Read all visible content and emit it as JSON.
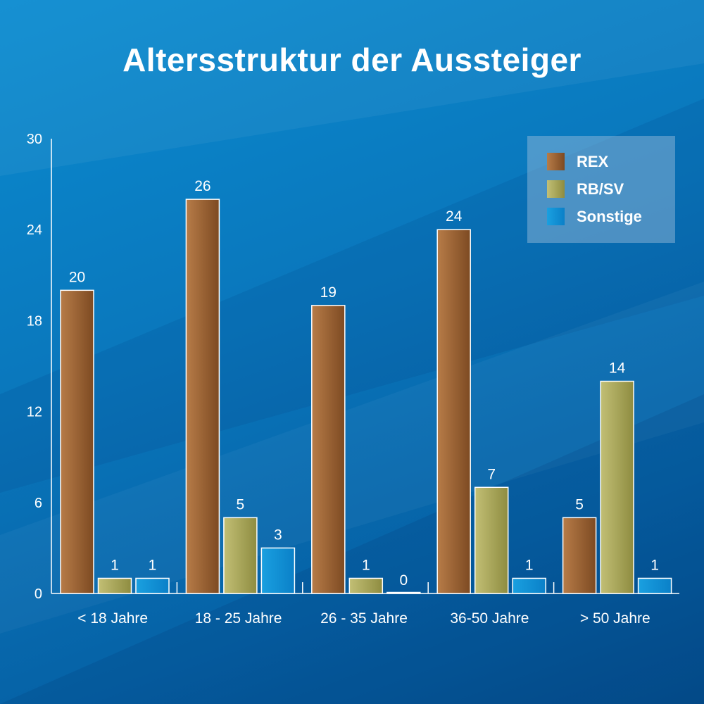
{
  "title": "Altersstruktur der Aussteiger",
  "chart_data": {
    "type": "bar",
    "title": "Altersstruktur der Aussteiger",
    "xlabel": "",
    "ylabel": "",
    "ylim": [
      0,
      30
    ],
    "yticks": [
      "0",
      "6",
      "12",
      "18",
      "24",
      "30"
    ],
    "categories": [
      "< 18 Jahre",
      "18 - 25 Jahre",
      "26 - 35 Jahre",
      "36-50 Jahre",
      "> 50 Jahre"
    ],
    "series": [
      {
        "name": "REX",
        "values": [
          20,
          26,
          19,
          24,
          5
        ],
        "color": "#9a6535"
      },
      {
        "name": "RB/SV",
        "values": [
          1,
          5,
          1,
          7,
          14
        ],
        "color": "#a8a65a"
      },
      {
        "name": "Sonstige",
        "values": [
          1,
          3,
          0,
          1,
          1
        ],
        "color": "#0a8fd4"
      }
    ],
    "legend_position": "top-right",
    "grid": false
  }
}
